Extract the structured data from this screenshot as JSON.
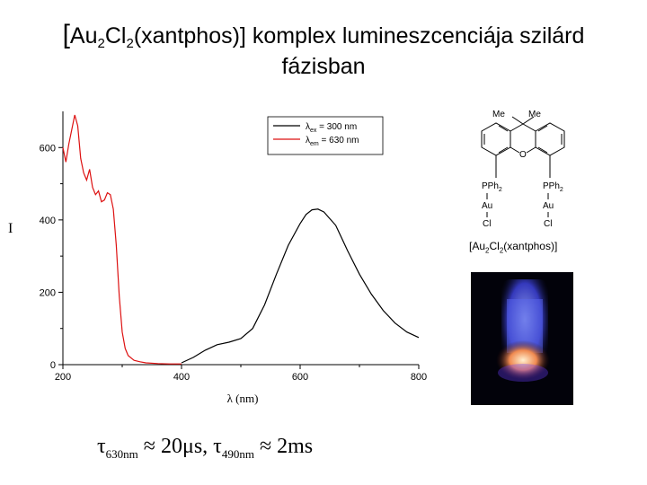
{
  "title": {
    "bracket_open": "[",
    "au": "Au",
    "au_sub": "2",
    "cl": "Cl",
    "cl_sub": "2",
    "rest": "(xantphos)] komplex lumineszcenciája szilárd",
    "line2": "fázisban"
  },
  "chart_data": {
    "type": "line",
    "xlabel": "λ (nm)",
    "ylabel": "I",
    "xlim": [
      200,
      800
    ],
    "ylim": [
      0,
      700
    ],
    "xticks": [
      200,
      400,
      600,
      800
    ],
    "yticks": [
      0,
      200,
      400,
      600
    ],
    "legend_position": "top-right",
    "series": [
      {
        "name": "λex = 300 nm",
        "legend_main": "λ",
        "legend_sub": "ex",
        "legend_rest": " = 300 nm",
        "color": "#000000",
        "x": [
          400,
          420,
          440,
          460,
          480,
          500,
          520,
          540,
          560,
          580,
          600,
          610,
          620,
          630,
          640,
          660,
          680,
          700,
          720,
          740,
          760,
          780,
          800
        ],
        "y": [
          5,
          20,
          40,
          55,
          62,
          72,
          100,
          165,
          250,
          330,
          390,
          415,
          428,
          430,
          422,
          385,
          315,
          250,
          195,
          150,
          115,
          90,
          75
        ]
      },
      {
        "name": "λem = 630 nm",
        "legend_main": "λ",
        "legend_sub": "em",
        "legend_rest": " = 630 nm",
        "color": "#dd1111",
        "x": [
          200,
          205,
          210,
          215,
          220,
          225,
          230,
          235,
          240,
          245,
          250,
          255,
          260,
          265,
          270,
          275,
          280,
          285,
          290,
          295,
          300,
          305,
          310,
          320,
          330,
          340,
          360,
          380,
          400
        ],
        "y": [
          600,
          560,
          610,
          650,
          690,
          660,
          570,
          530,
          510,
          540,
          490,
          470,
          480,
          450,
          455,
          475,
          470,
          430,
          330,
          190,
          90,
          45,
          25,
          12,
          8,
          5,
          3,
          2,
          2
        ]
      }
    ]
  },
  "structure": {
    "me1": "Me",
    "me2": "Me",
    "o": "O",
    "pph_left": "PPh",
    "pph_left_sub": "2",
    "pph_right": "PPh",
    "pph_right_sub": "2",
    "au_left": "Au",
    "au_right": "Au",
    "cl_left": "Cl",
    "cl_right": "Cl"
  },
  "formula": {
    "open": "[Au",
    "sub1": "2",
    "mid": "Cl",
    "sub2": "2",
    "close": "(xantphos)]"
  },
  "lifetime": {
    "tau1": "τ",
    "tau1_sub": "630nm",
    "tau1_value": " ≈ 20μs, ",
    "tau2": "τ",
    "tau2_sub": "490nm",
    "tau2_value": " ≈ 2ms"
  }
}
